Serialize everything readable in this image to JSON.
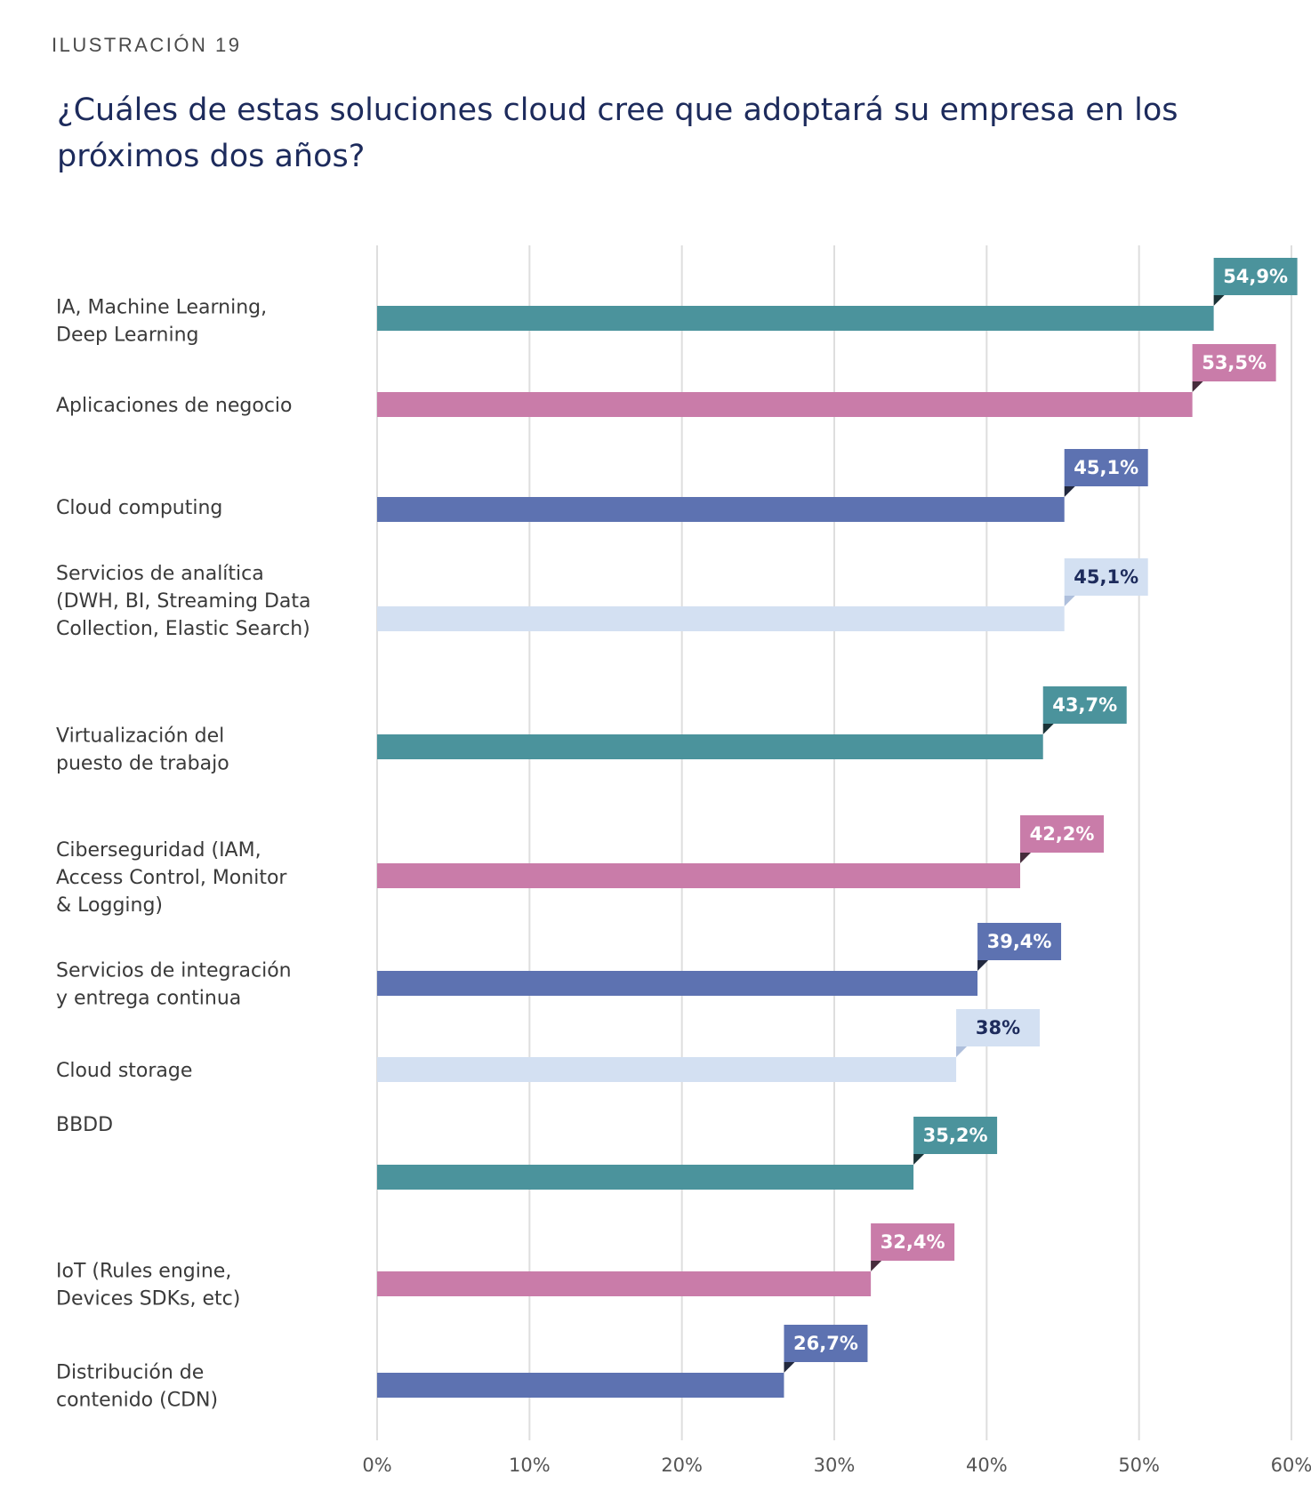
{
  "header": {
    "kicker": "ILUSTRACIÓN 19",
    "title": "¿Cuáles de estas soluciones cloud cree que adoptará su empresa en los próximos dos años?"
  },
  "colors": {
    "teal": "#4b939c",
    "pink": "#c97ca9",
    "blue": "#5d72b1",
    "light": "#d3e0f2",
    "dark_text": "#1d2b5c",
    "grid": "#dedede"
  },
  "chart_data": {
    "type": "bar",
    "orientation": "horizontal",
    "categories": [
      "IA, Machine Learning,\nDeep Learning",
      "Aplicaciones de negocio",
      "Cloud computing",
      "Servicios de analítica\n(DWH, BI, Streaming Data\nCollection, Elastic Search)",
      "Virtualización del\npuesto de trabajo",
      "Ciberseguridad (IAM,\nAccess Control, Monitor\n& Logging)",
      "Servicios de integración\ny entrega continua",
      "Cloud storage",
      "BBDD",
      "IoT (Rules engine,\nDevices SDKs, etc)",
      "Distribución de\ncontenido (CDN)"
    ],
    "values": [
      54.9,
      53.5,
      45.1,
      45.1,
      43.7,
      42.2,
      39.4,
      38,
      35.2,
      32.4,
      26.7
    ],
    "value_labels": [
      "54,9%",
      "53,5%",
      "45,1%",
      "45,1%",
      "43,7%",
      "42,2%",
      "39,4%",
      "38%",
      "35,2%",
      "32,4%",
      "26,7%"
    ],
    "bar_colors": [
      "#4b939c",
      "#c97ca9",
      "#5d72b1",
      "#d3e0f2",
      "#4b939c",
      "#c97ca9",
      "#5d72b1",
      "#d3e0f2",
      "#4b939c",
      "#c97ca9",
      "#5d72b1"
    ],
    "xlim": [
      0,
      60
    ],
    "xticks": [
      0,
      10,
      20,
      30,
      40,
      50,
      60
    ],
    "xtick_labels": [
      "0%",
      "10%",
      "20%",
      "30%",
      "40%",
      "50%",
      "60%"
    ],
    "grid": true,
    "legend": "none"
  }
}
